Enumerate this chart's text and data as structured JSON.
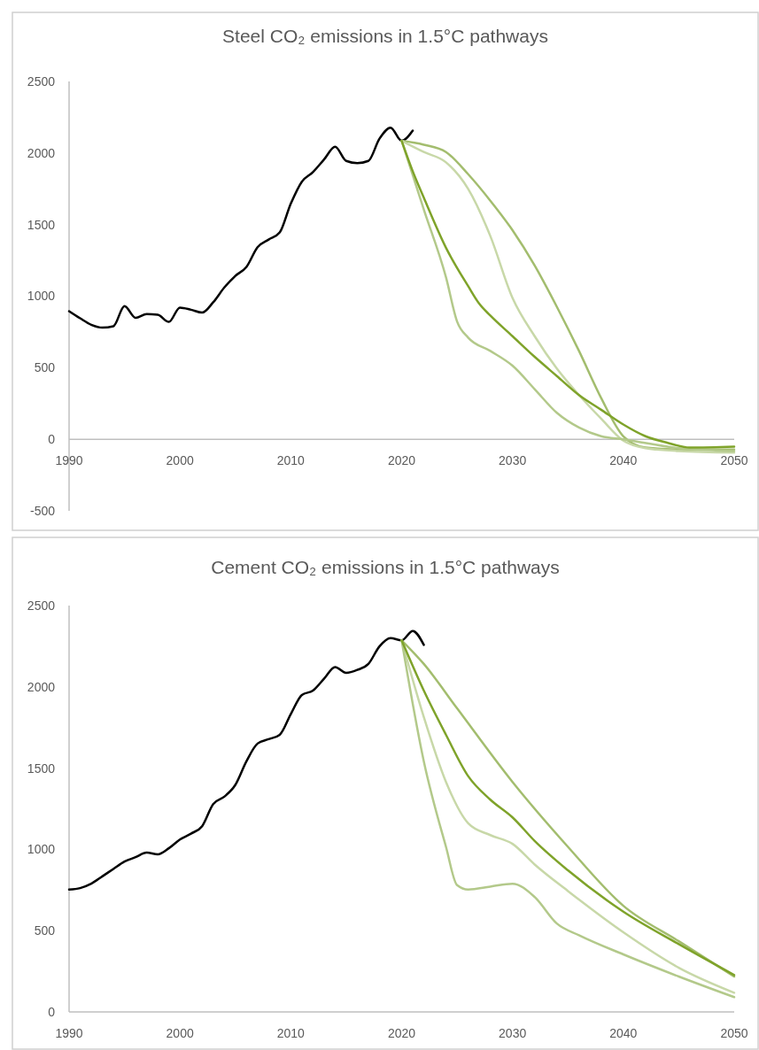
{
  "chart_data": [
    {
      "type": "line",
      "title": "Steel CO₂ emissions in 1.5°C pathways",
      "xlim": [
        1990,
        2050
      ],
      "xticks": [
        1990,
        2000,
        2010,
        2020,
        2030,
        2040,
        2050
      ],
      "ylim": [
        -500,
        2500
      ],
      "yticks": [
        -500,
        0,
        500,
        1000,
        1500,
        2000,
        2500
      ],
      "series": [
        {
          "color": "#000000",
          "x": [
            1990,
            1991,
            1992,
            1993,
            1994,
            1995,
            1996,
            1997,
            1998,
            1999,
            2000,
            2001,
            2002,
            2003,
            2004,
            2005,
            2006,
            2007,
            2008,
            2009,
            2010,
            2011,
            2012,
            2013,
            2014,
            2015,
            2016,
            2017,
            2018,
            2019,
            2020,
            2021
          ],
          "values": [
            895,
            845,
            800,
            780,
            790,
            930,
            848,
            875,
            870,
            820,
            920,
            905,
            885,
            957,
            1060,
            1142,
            1204,
            1342,
            1395,
            1445,
            1646,
            1800,
            1867,
            1955,
            2044,
            1945,
            1930,
            1945,
            2100,
            2177,
            2085,
            2157
          ]
        },
        {
          "color": "#a3bd6e",
          "x": [
            2020,
            2022,
            2024,
            2026,
            2028,
            2030,
            2032,
            2034,
            2036,
            2038,
            2040,
            2042,
            2045,
            2050
          ],
          "values": [
            2085,
            2058,
            2007,
            1852,
            1667,
            1461,
            1214,
            926,
            617,
            288,
            21,
            -58,
            -72,
            -72
          ]
        },
        {
          "color": "#c8d8a8",
          "x": [
            2020,
            2022,
            2024,
            2026,
            2028,
            2030,
            2032,
            2034,
            2036,
            2038,
            2040,
            2042,
            2045,
            2050
          ],
          "values": [
            2085,
            2007,
            1935,
            1749,
            1420,
            988,
            720,
            494,
            309,
            144,
            -10,
            -62,
            -82,
            -93
          ]
        },
        {
          "color": "#b3c98a",
          "x": [
            2020,
            2022,
            2024,
            2025,
            2026,
            2028,
            2030,
            2032,
            2034,
            2036,
            2038,
            2040,
            2045,
            2050
          ],
          "values": [
            2085,
            1605,
            1132,
            823,
            710,
            617,
            514,
            350,
            185,
            82,
            21,
            0,
            -62,
            -82
          ]
        },
        {
          "color": "#7fa32a",
          "x": [
            2020,
            2021,
            2022,
            2024,
            2026,
            2027,
            2028,
            2030,
            2032,
            2034,
            2036,
            2038,
            2040,
            2042,
            2044,
            2046,
            2050
          ],
          "values": [
            2085,
            1873,
            1688,
            1338,
            1070,
            947,
            864,
            720,
            576,
            442,
            309,
            206,
            103,
            21,
            -25,
            -58,
            -51
          ]
        }
      ]
    },
    {
      "type": "line",
      "title": "Cement CO₂ emissions in 1.5°C pathways",
      "xlim": [
        1990,
        2050
      ],
      "xticks": [
        1990,
        2000,
        2010,
        2020,
        2030,
        2040,
        2050
      ],
      "ylim": [
        0,
        2500
      ],
      "yticks": [
        0,
        500,
        1000,
        1500,
        2000,
        2500
      ],
      "series": [
        {
          "color": "#000000",
          "x": [
            1990,
            1991,
            1992,
            1993,
            1994,
            1995,
            1996,
            1997,
            1998,
            1999,
            2000,
            2001,
            2002,
            2003,
            2004,
            2005,
            2006,
            2007,
            2008,
            2009,
            2010,
            2011,
            2012,
            2013,
            2014,
            2015,
            2016,
            2017,
            2018,
            2019,
            2020,
            2021,
            2022
          ],
          "values": [
            753,
            762,
            789,
            834,
            880,
            925,
            952,
            980,
            970,
            1007,
            1061,
            1097,
            1143,
            1279,
            1324,
            1397,
            1542,
            1651,
            1678,
            1705,
            1832,
            1950,
            1977,
            2050,
            2122,
            2086,
            2104,
            2141,
            2249,
            2300,
            2286,
            2344,
            2258
          ]
        },
        {
          "color": "#a3bd6e",
          "x": [
            2020,
            2022,
            2025,
            2030,
            2035,
            2040,
            2045,
            2050
          ],
          "values": [
            2286,
            2141,
            1868,
            1415,
            1016,
            653,
            435,
            218
          ]
        },
        {
          "color": "#c8d8a8",
          "x": [
            2020,
            2022,
            2024,
            2026,
            2028,
            2030,
            2032,
            2035,
            2040,
            2045,
            2050
          ],
          "values": [
            2286,
            1814,
            1415,
            1161,
            1088,
            1034,
            907,
            744,
            490,
            272,
            118
          ]
        },
        {
          "color": "#b3c98a",
          "x": [
            2020,
            2022,
            2024,
            2025,
            2026,
            2028,
            2030,
            2032,
            2034,
            2036,
            2040,
            2045,
            2050
          ],
          "values": [
            2286,
            1542,
            1016,
            780,
            753,
            771,
            789,
            707,
            544,
            472,
            354,
            218,
            91
          ]
        },
        {
          "color": "#7fa32a",
          "x": [
            2020,
            2022,
            2024,
            2026,
            2028,
            2030,
            2032,
            2035,
            2040,
            2045,
            2050
          ],
          "values": [
            2286,
            1977,
            1705,
            1451,
            1306,
            1197,
            1052,
            871,
            617,
            417,
            227
          ]
        }
      ]
    }
  ]
}
